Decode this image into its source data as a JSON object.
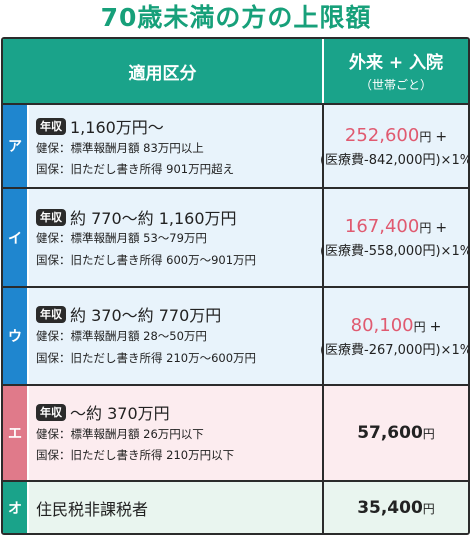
{
  "title": "70歳未満の方の上限額",
  "header": {
    "category": "適用区分",
    "amount_main": "外来 + 入院",
    "amount_sub": "（世帯ごと）"
  },
  "badge": "年収",
  "yen": "円",
  "plus": "+",
  "rows": [
    {
      "label": "ア",
      "income": "1,160万円〜",
      "kenpo": "健保：標準報酬月額 83万円以上",
      "kokuho": "国保：旧ただし書き所得 901万円超え",
      "amount": "252,600",
      "formula": "(医療費-842,000円)×1%"
    },
    {
      "label": "イ",
      "income": "約 770〜約 1,160万円",
      "kenpo": "健保：標準報酬月額 53〜79万円",
      "kokuho": "国保：旧ただし書き所得 600万〜901万円",
      "amount": "167,400",
      "formula": "(医療費-558,000円)×1%"
    },
    {
      "label": "ウ",
      "income": "約 370〜約 770万円",
      "kenpo": "健保：標準報酬月額 28〜50万円",
      "kokuho": "国保：旧ただし書き所得 210万〜600万円",
      "amount": "80,100",
      "formula": "(医療費-267,000円)×1%"
    },
    {
      "label": "エ",
      "income": "〜約 370万円",
      "kenpo": "健保：標準報酬月額 26万円以下",
      "kokuho": "国保：旧ただし書き所得 210万円以下",
      "amount": "57,600"
    },
    {
      "label": "オ",
      "category": "住民税非課税者",
      "amount": "35,400"
    }
  ],
  "colors": {
    "title": "#17a07a",
    "header": "#1aa38a",
    "row_blue": "#1f86cf",
    "row_pink": "#e07a8a",
    "row_green": "#1aa38a",
    "amount_red": "#e05a70"
  }
}
